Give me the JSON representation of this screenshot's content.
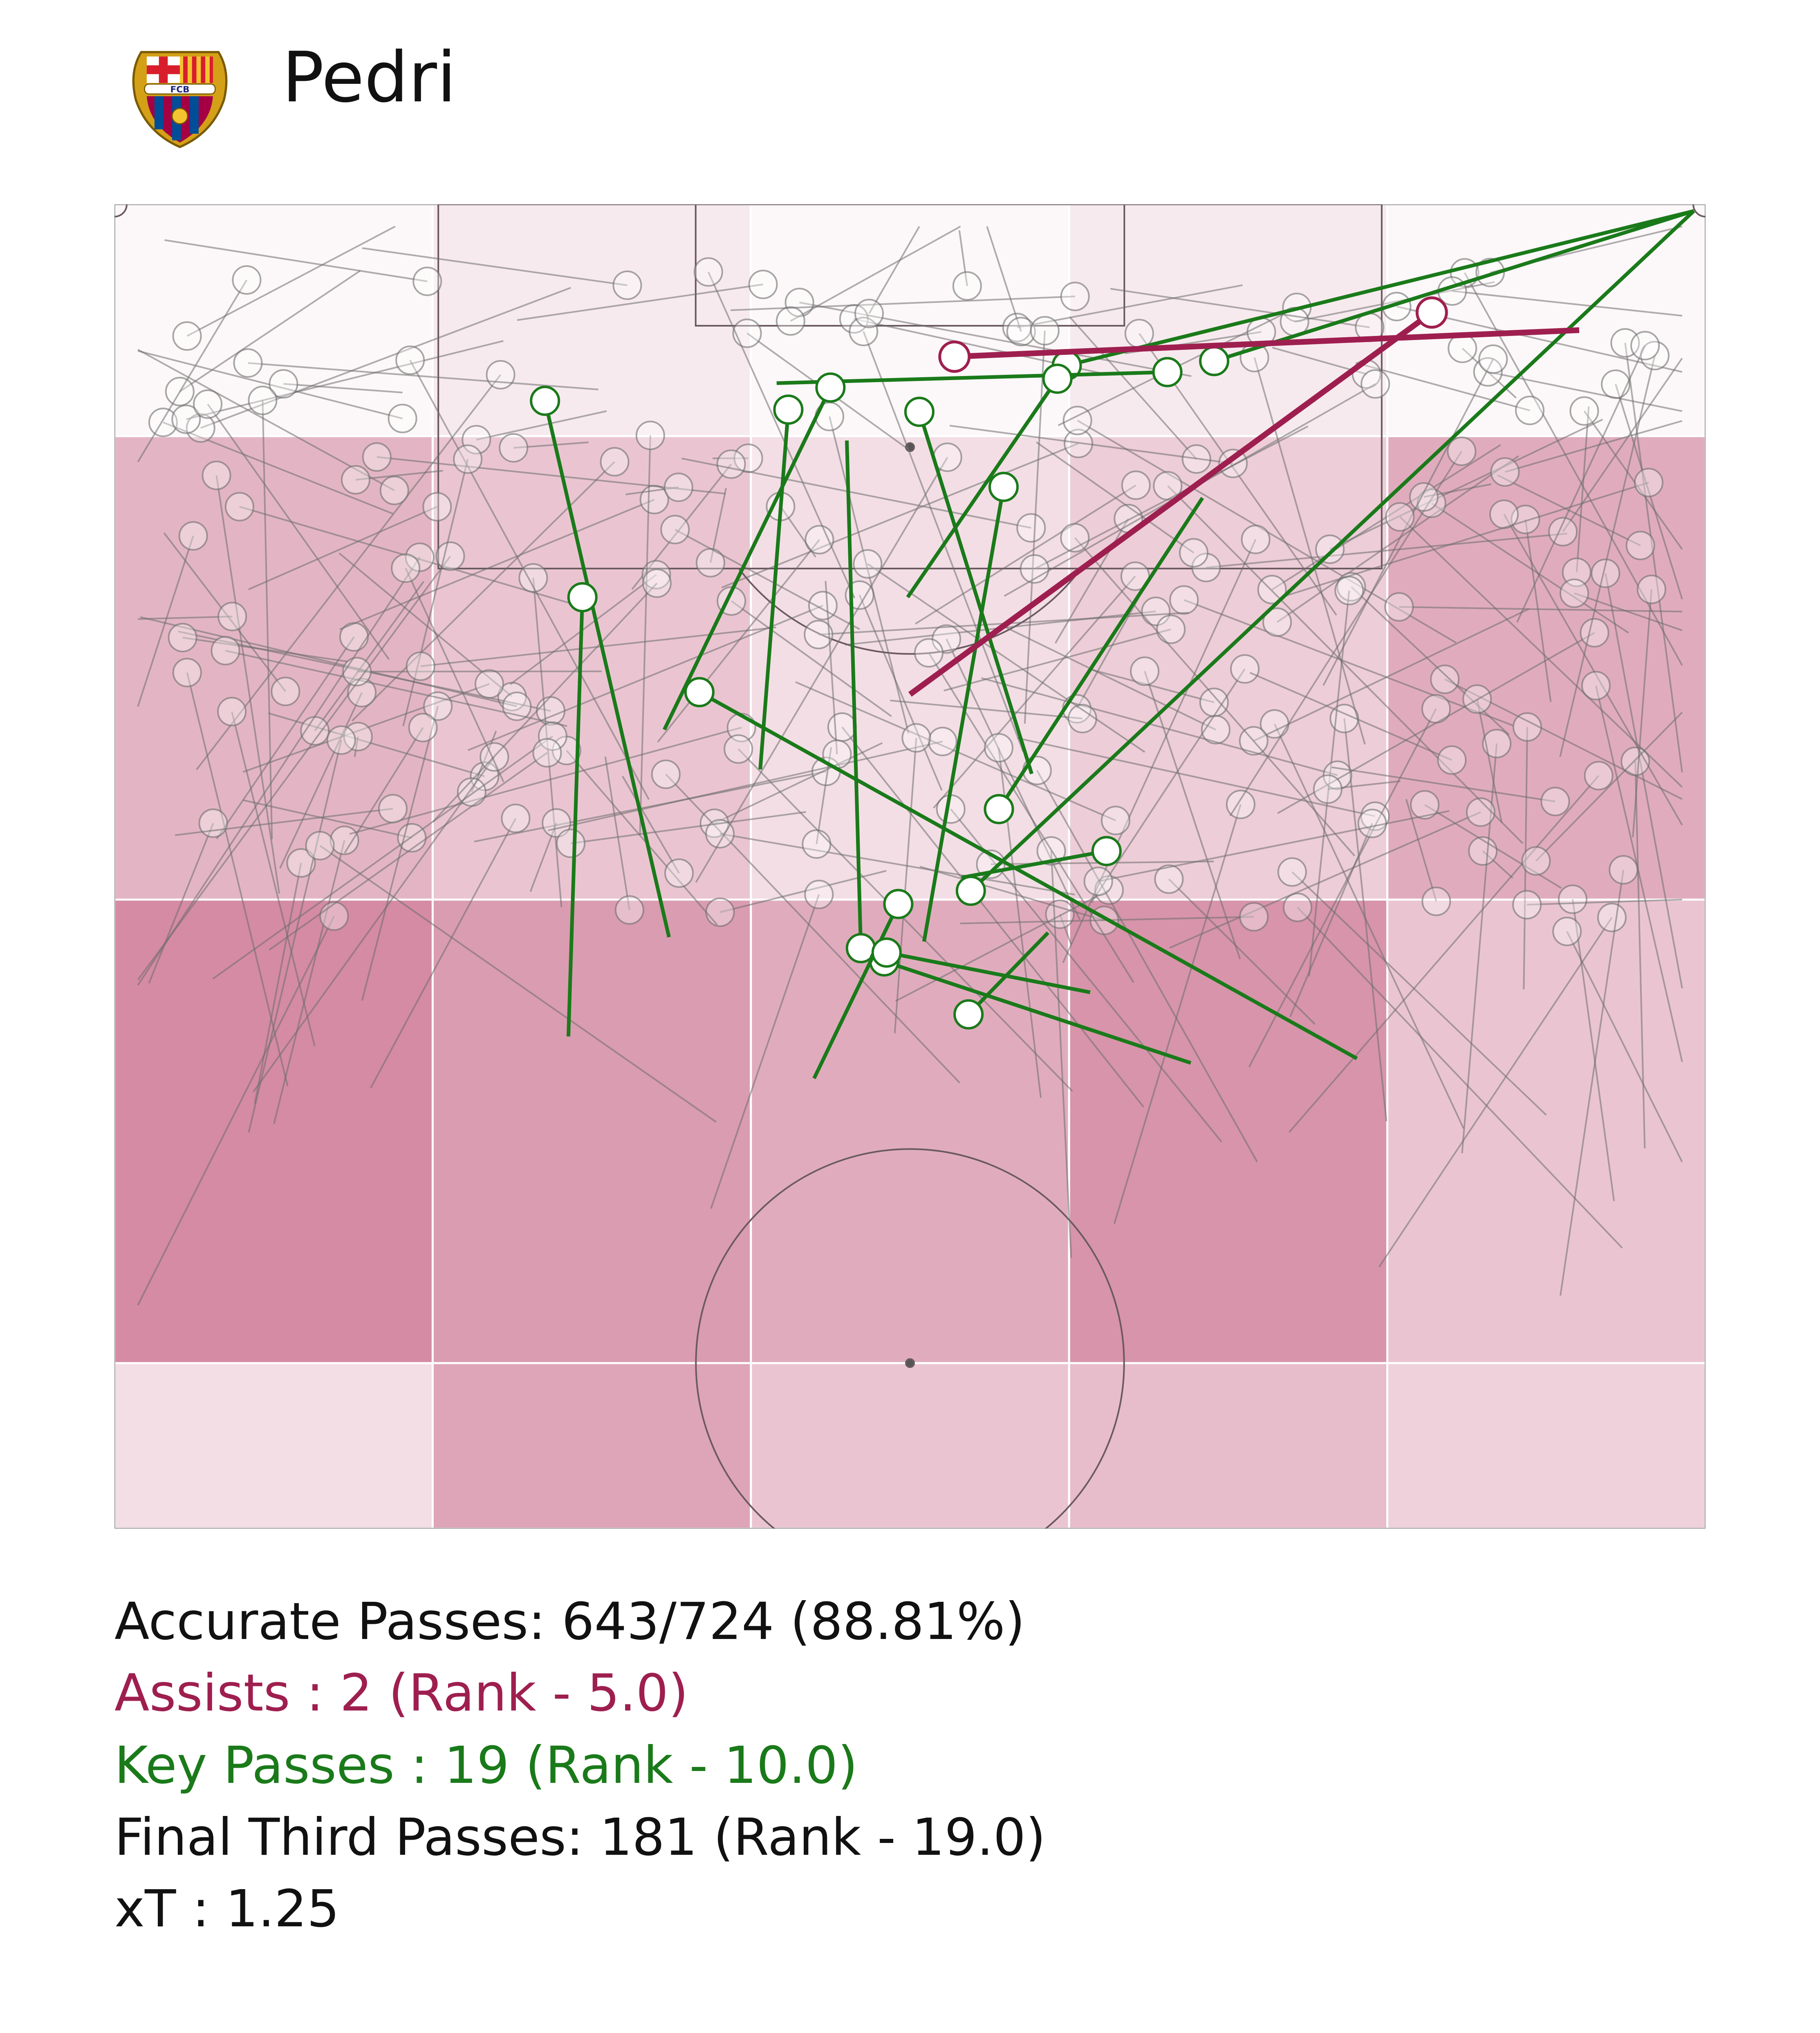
{
  "header": {
    "player": "Pedri",
    "crest_text": "FCB"
  },
  "stats": {
    "accurate": "Accurate Passes: 643/724 (88.81%)",
    "assists": "Assists : 2 (Rank - 5.0)",
    "key_passes": "Key Passes : 19 (Rank - 10.0)",
    "final_third": "Final Third Passes: 181 (Rank - 19.0)",
    "xt": "xT : 1.25"
  },
  "colors": {
    "assist": "#9e1f4f",
    "key_pass": "#1a7a1a",
    "pass": "#6e6e6e",
    "zone_base": "#c25a7c",
    "pitch_lines": "#6a5a60"
  },
  "chart_data": {
    "type": "pass-map",
    "pitch": {
      "length": 105,
      "width": 68,
      "shown": "attacking half"
    },
    "x_zone_bounds": [
      105,
      94.5,
      73.5,
      52.5,
      45
    ],
    "y_zone_bounds": [
      0,
      13.6,
      27.2,
      40.8,
      54.4,
      68
    ],
    "zone_xT_alpha": [
      [
        0.05,
        0.13,
        0.05,
        0.13,
        0.05
      ],
      [
        0.45,
        0.35,
        0.2,
        0.3,
        0.5
      ],
      [
        0.7,
        0.6,
        0.5,
        0.65,
        0.35
      ],
      [
        0.2,
        0.55,
        0.35,
        0.4,
        0.28
      ]
    ],
    "assists": [
      {
        "x1": 82.8,
        "y1": 34.0,
        "x2": 100.1,
        "y2": 56.3
      },
      {
        "x1": 99.3,
        "y1": 62.6,
        "x2": 98.1,
        "y2": 35.9
      }
    ],
    "key_passes": [
      {
        "x1": 104.7,
        "y1": 67.5,
        "x2": 97.9,
        "y2": 47.0
      },
      {
        "x1": 104.7,
        "y1": 67.5,
        "x2": 97.7,
        "y2": 40.7
      },
      {
        "x1": 104.7,
        "y1": 67.5,
        "x2": 73.9,
        "y2": 36.6
      },
      {
        "x1": 96.9,
        "y1": 28.3,
        "x2": 97.4,
        "y2": 45.0
      },
      {
        "x1": 94.3,
        "y1": 31.3,
        "x2": 71.3,
        "y2": 31.9
      },
      {
        "x1": 87.2,
        "y1": 33.9,
        "x2": 97.1,
        "y2": 40.3
      },
      {
        "x1": 81.2,
        "y1": 23.5,
        "x2": 96.7,
        "y2": 30.6
      },
      {
        "x1": 79.4,
        "y1": 27.6,
        "x2": 95.7,
        "y2": 28.8
      },
      {
        "x1": 71.8,
        "y1": 23.7,
        "x2": 96.1,
        "y2": 18.4
      },
      {
        "x1": 71.6,
        "y1": 34.6,
        "x2": 92.2,
        "y2": 38.0
      },
      {
        "x1": 67.3,
        "y1": 19.4,
        "x2": 87.2,
        "y2": 20.0
      },
      {
        "x1": 66.3,
        "y1": 53.1,
        "x2": 82.9,
        "y2": 25.0
      },
      {
        "x1": 66.1,
        "y1": 46.0,
        "x2": 70.7,
        "y2": 32.9
      },
      {
        "x1": 65.4,
        "y1": 29.9,
        "x2": 73.3,
        "y2": 33.5
      },
      {
        "x1": 72.0,
        "y1": 39.9,
        "x2": 68.3,
        "y2": 36.5
      },
      {
        "x1": 69.3,
        "y1": 41.7,
        "x2": 71.1,
        "y2": 33.0
      },
      {
        "x1": 74.5,
        "y1": 36.2,
        "x2": 75.7,
        "y2": 42.4
      },
      {
        "x1": 79.2,
        "y1": 39.2,
        "x2": 95.6,
        "y2": 34.4
      },
      {
        "x1": 91.7,
        "y1": 46.5,
        "x2": 77.6,
        "y2": 37.8
      }
    ]
  }
}
